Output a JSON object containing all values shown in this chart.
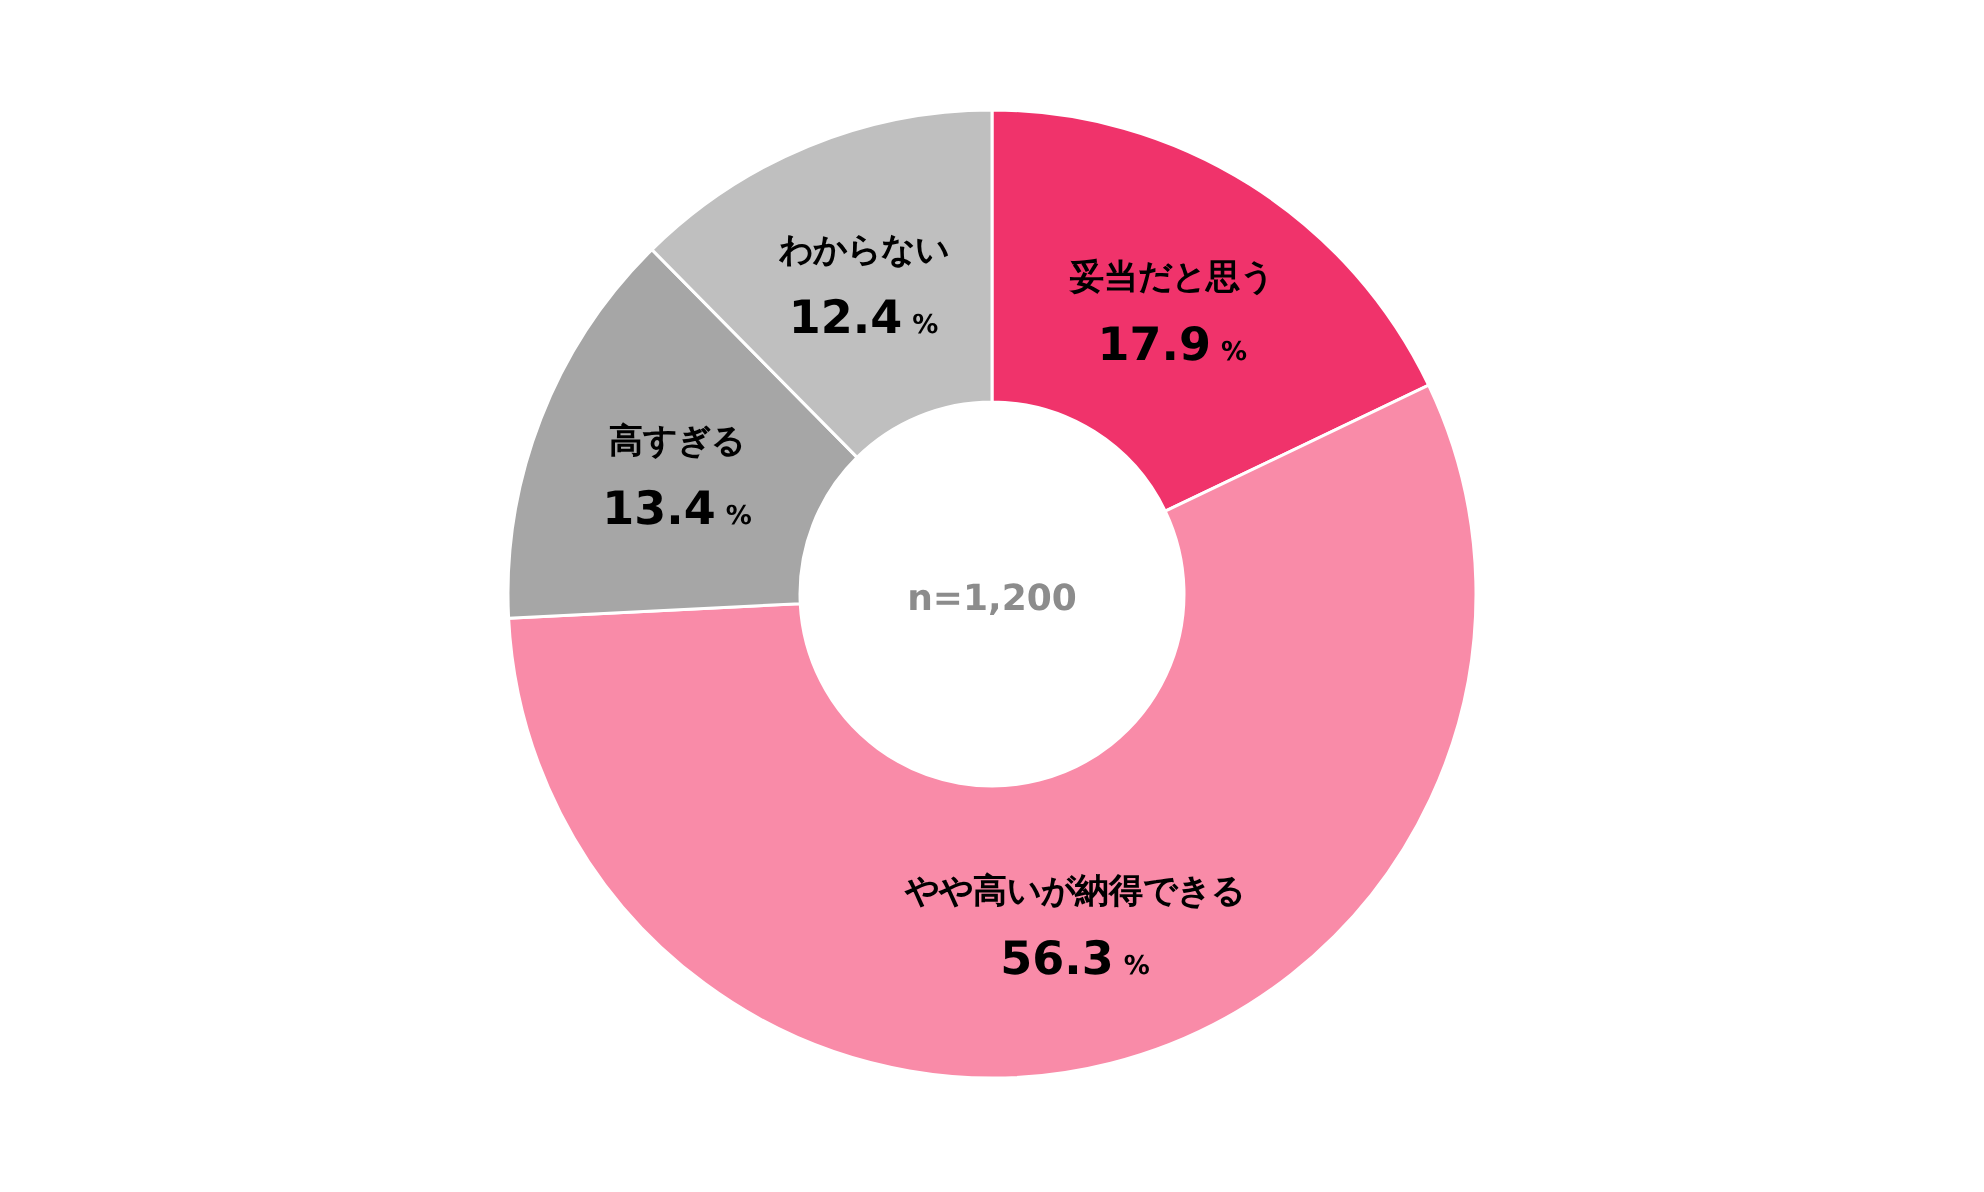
{
  "chart_data": {
    "type": "donut",
    "categories": [
      "妥当だと思う",
      "やや高いが納得できる",
      "高すぎる",
      "わからない"
    ],
    "values": [
      17.9,
      56.3,
      13.4,
      12.4
    ],
    "colors": [
      "#f0336b",
      "#f98ba8",
      "#a6a6a6",
      "#bfbfbf"
    ],
    "value_labels": [
      "17.9%",
      "56.3%",
      "13.4%",
      "12.4%"
    ],
    "annotations": [
      "n=1,200"
    ]
  }
}
